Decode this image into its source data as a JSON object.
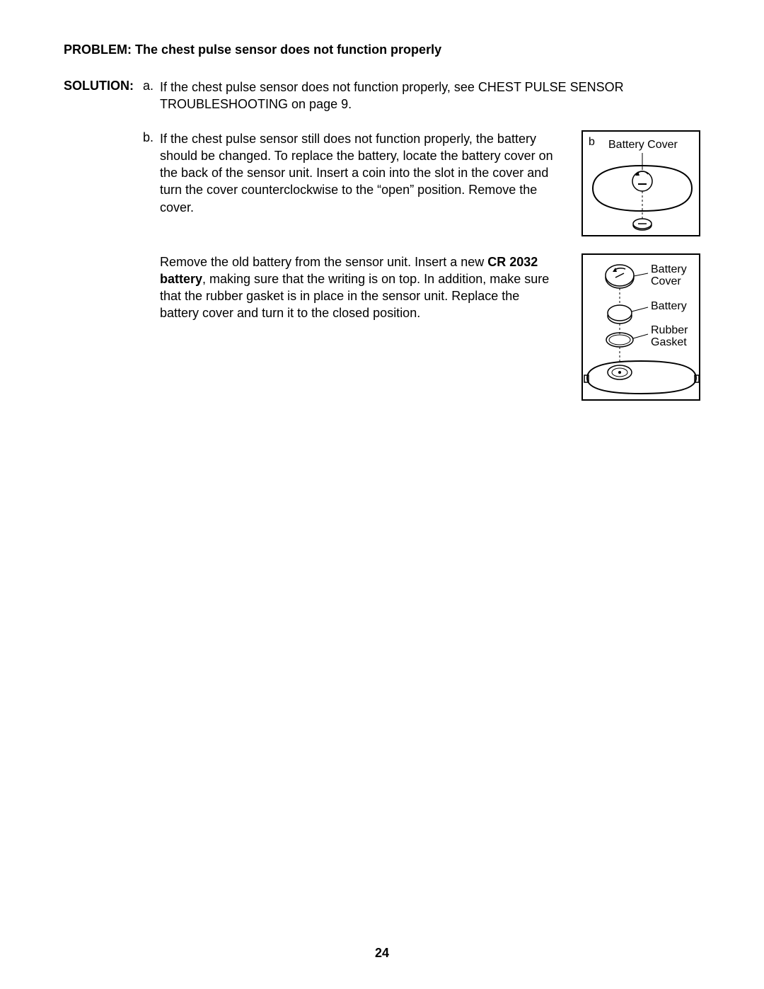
{
  "problem": {
    "label": "PROBLEM:",
    "text": "The chest pulse sensor does not function properly"
  },
  "solution_label": "SOLUTION:",
  "step_a": {
    "letter": "a.",
    "text": "If the chest pulse sensor does not function properly, see CHEST PULSE SENSOR TROUBLESHOOTING on page 9."
  },
  "step_b": {
    "letter": "b.",
    "text": "If the chest pulse sensor still does not function properly, the battery should be changed. To replace the battery, locate the battery cover on the back of the sensor unit. Insert a coin into the slot in the cover and turn the cover counterclockwise to the “open” position. Remove the cover."
  },
  "step_c": {
    "text_pre": "Remove the old battery from the sensor unit. Insert a new ",
    "bold": "CR 2032 battery",
    "text_post": ", making sure that the writing is on top. In addition, make sure that the rubber gasket is in place in the sensor unit. Replace the battery cover and turn it to the closed position."
  },
  "figure1": {
    "letter": "b",
    "label": "Battery Cover",
    "stroke": "#000000"
  },
  "figure2": {
    "label_cover": "Battery Cover",
    "label_battery": "Battery",
    "label_gasket": "Rubber Gasket",
    "stroke": "#000000"
  },
  "page_number": "24"
}
